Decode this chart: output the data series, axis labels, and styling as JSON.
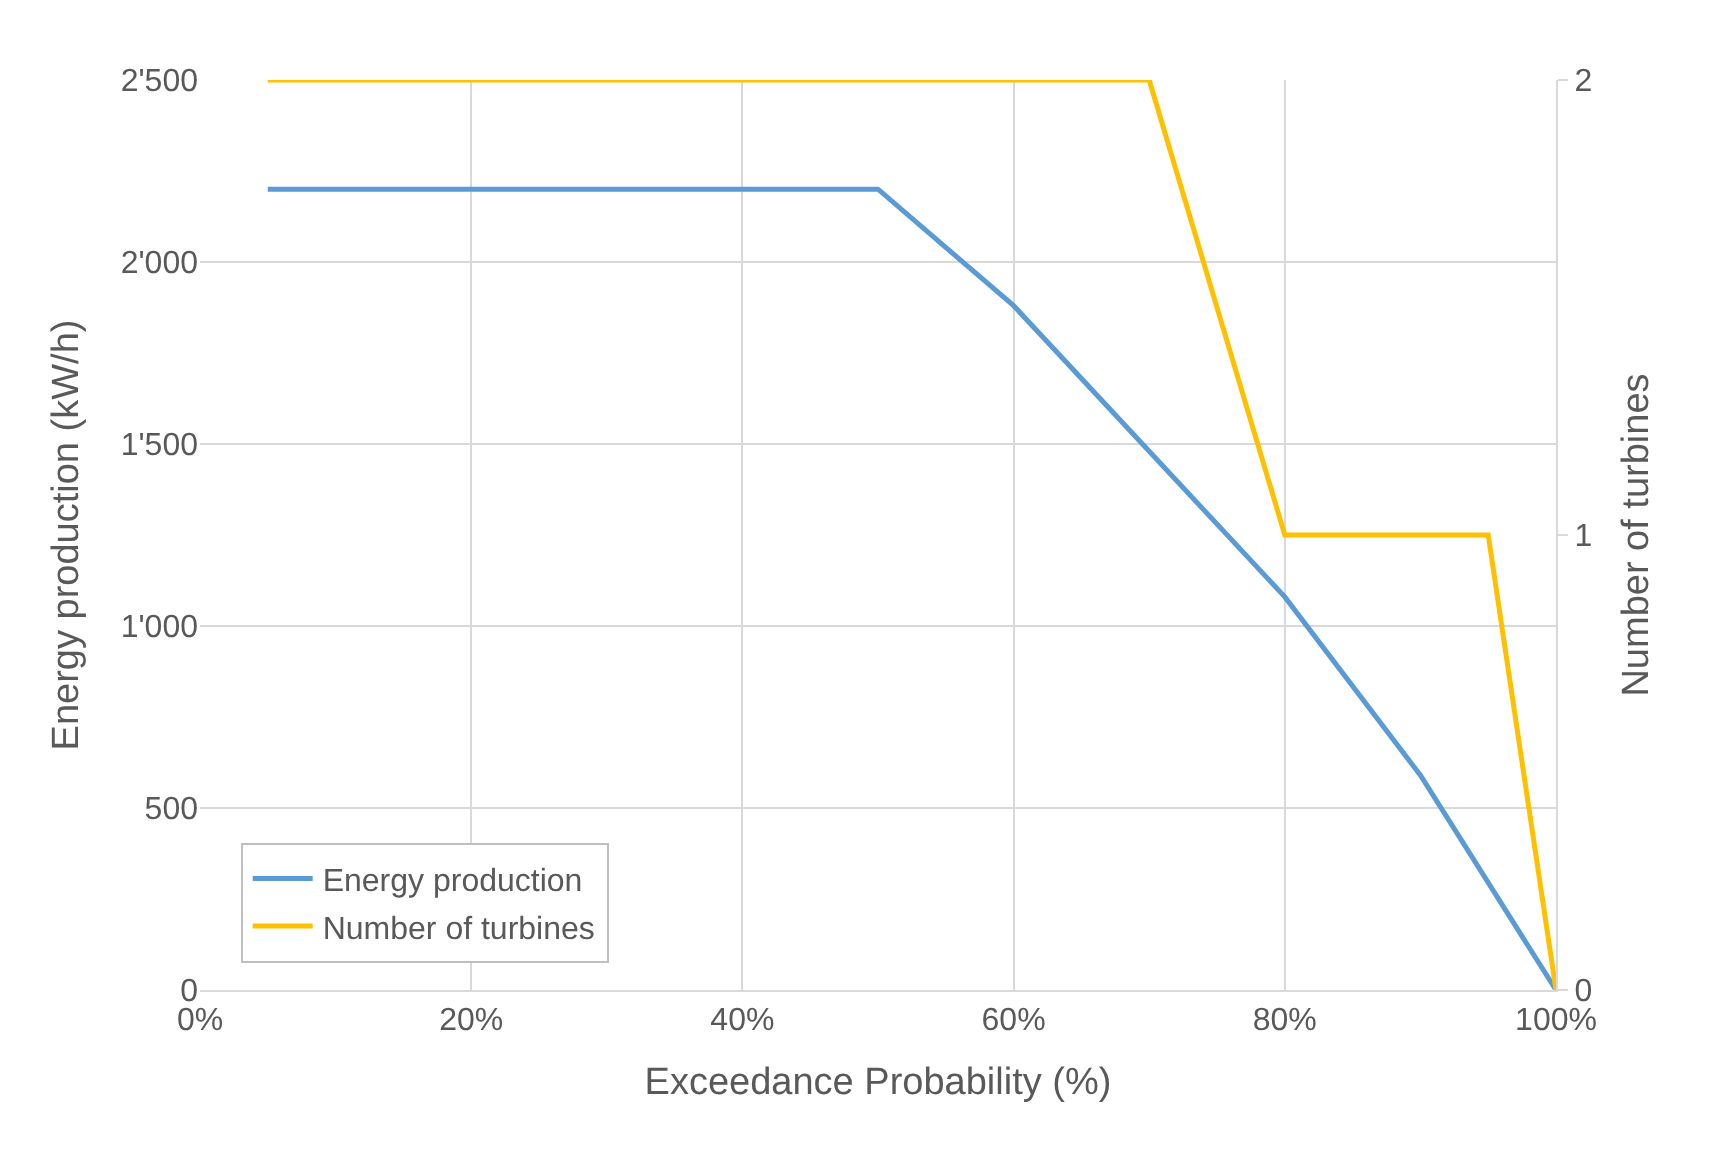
{
  "chart_data": {
    "type": "line",
    "xlabel": "Exceedance Probability (%)",
    "ylabel": "Energy production (kW/h)",
    "y2label": "Number of turbines",
    "xlim": [
      0,
      100
    ],
    "xticks": [
      {
        "value": 0,
        "label": "0%"
      },
      {
        "value": 20,
        "label": "20%"
      },
      {
        "value": 40,
        "label": "40%"
      },
      {
        "value": 60,
        "label": "60%"
      },
      {
        "value": 80,
        "label": "80%"
      },
      {
        "value": 100,
        "label": "100%"
      }
    ],
    "ylim": [
      0,
      2500
    ],
    "yticks": [
      0,
      500,
      {
        "value": 1000,
        "label": "1'000"
      },
      {
        "value": 1500,
        "label": "1'500"
      },
      {
        "value": 2000,
        "label": "2'000"
      },
      {
        "value": 2500,
        "label": "2'500"
      }
    ],
    "y2lim": [
      0,
      2
    ],
    "y2ticks": [
      0,
      1,
      2
    ],
    "grid": true,
    "legend": "bottom left",
    "line_style": "solid",
    "marker": "none",
    "series": [
      {
        "name": "Energy production",
        "color": "#5b9bd5",
        "x": [
          5,
          50,
          60,
          70,
          80,
          90,
          100
        ],
        "values": [
          2200,
          2200,
          1880,
          1480,
          1080,
          590,
          0
        ]
      },
      {
        "name": "Number of turbines",
        "color": "#ffc000",
        "axis": "y2",
        "x": [
          5,
          70,
          80,
          95,
          100
        ],
        "values": [
          2,
          2,
          1,
          1,
          0
        ]
      }
    ]
  }
}
